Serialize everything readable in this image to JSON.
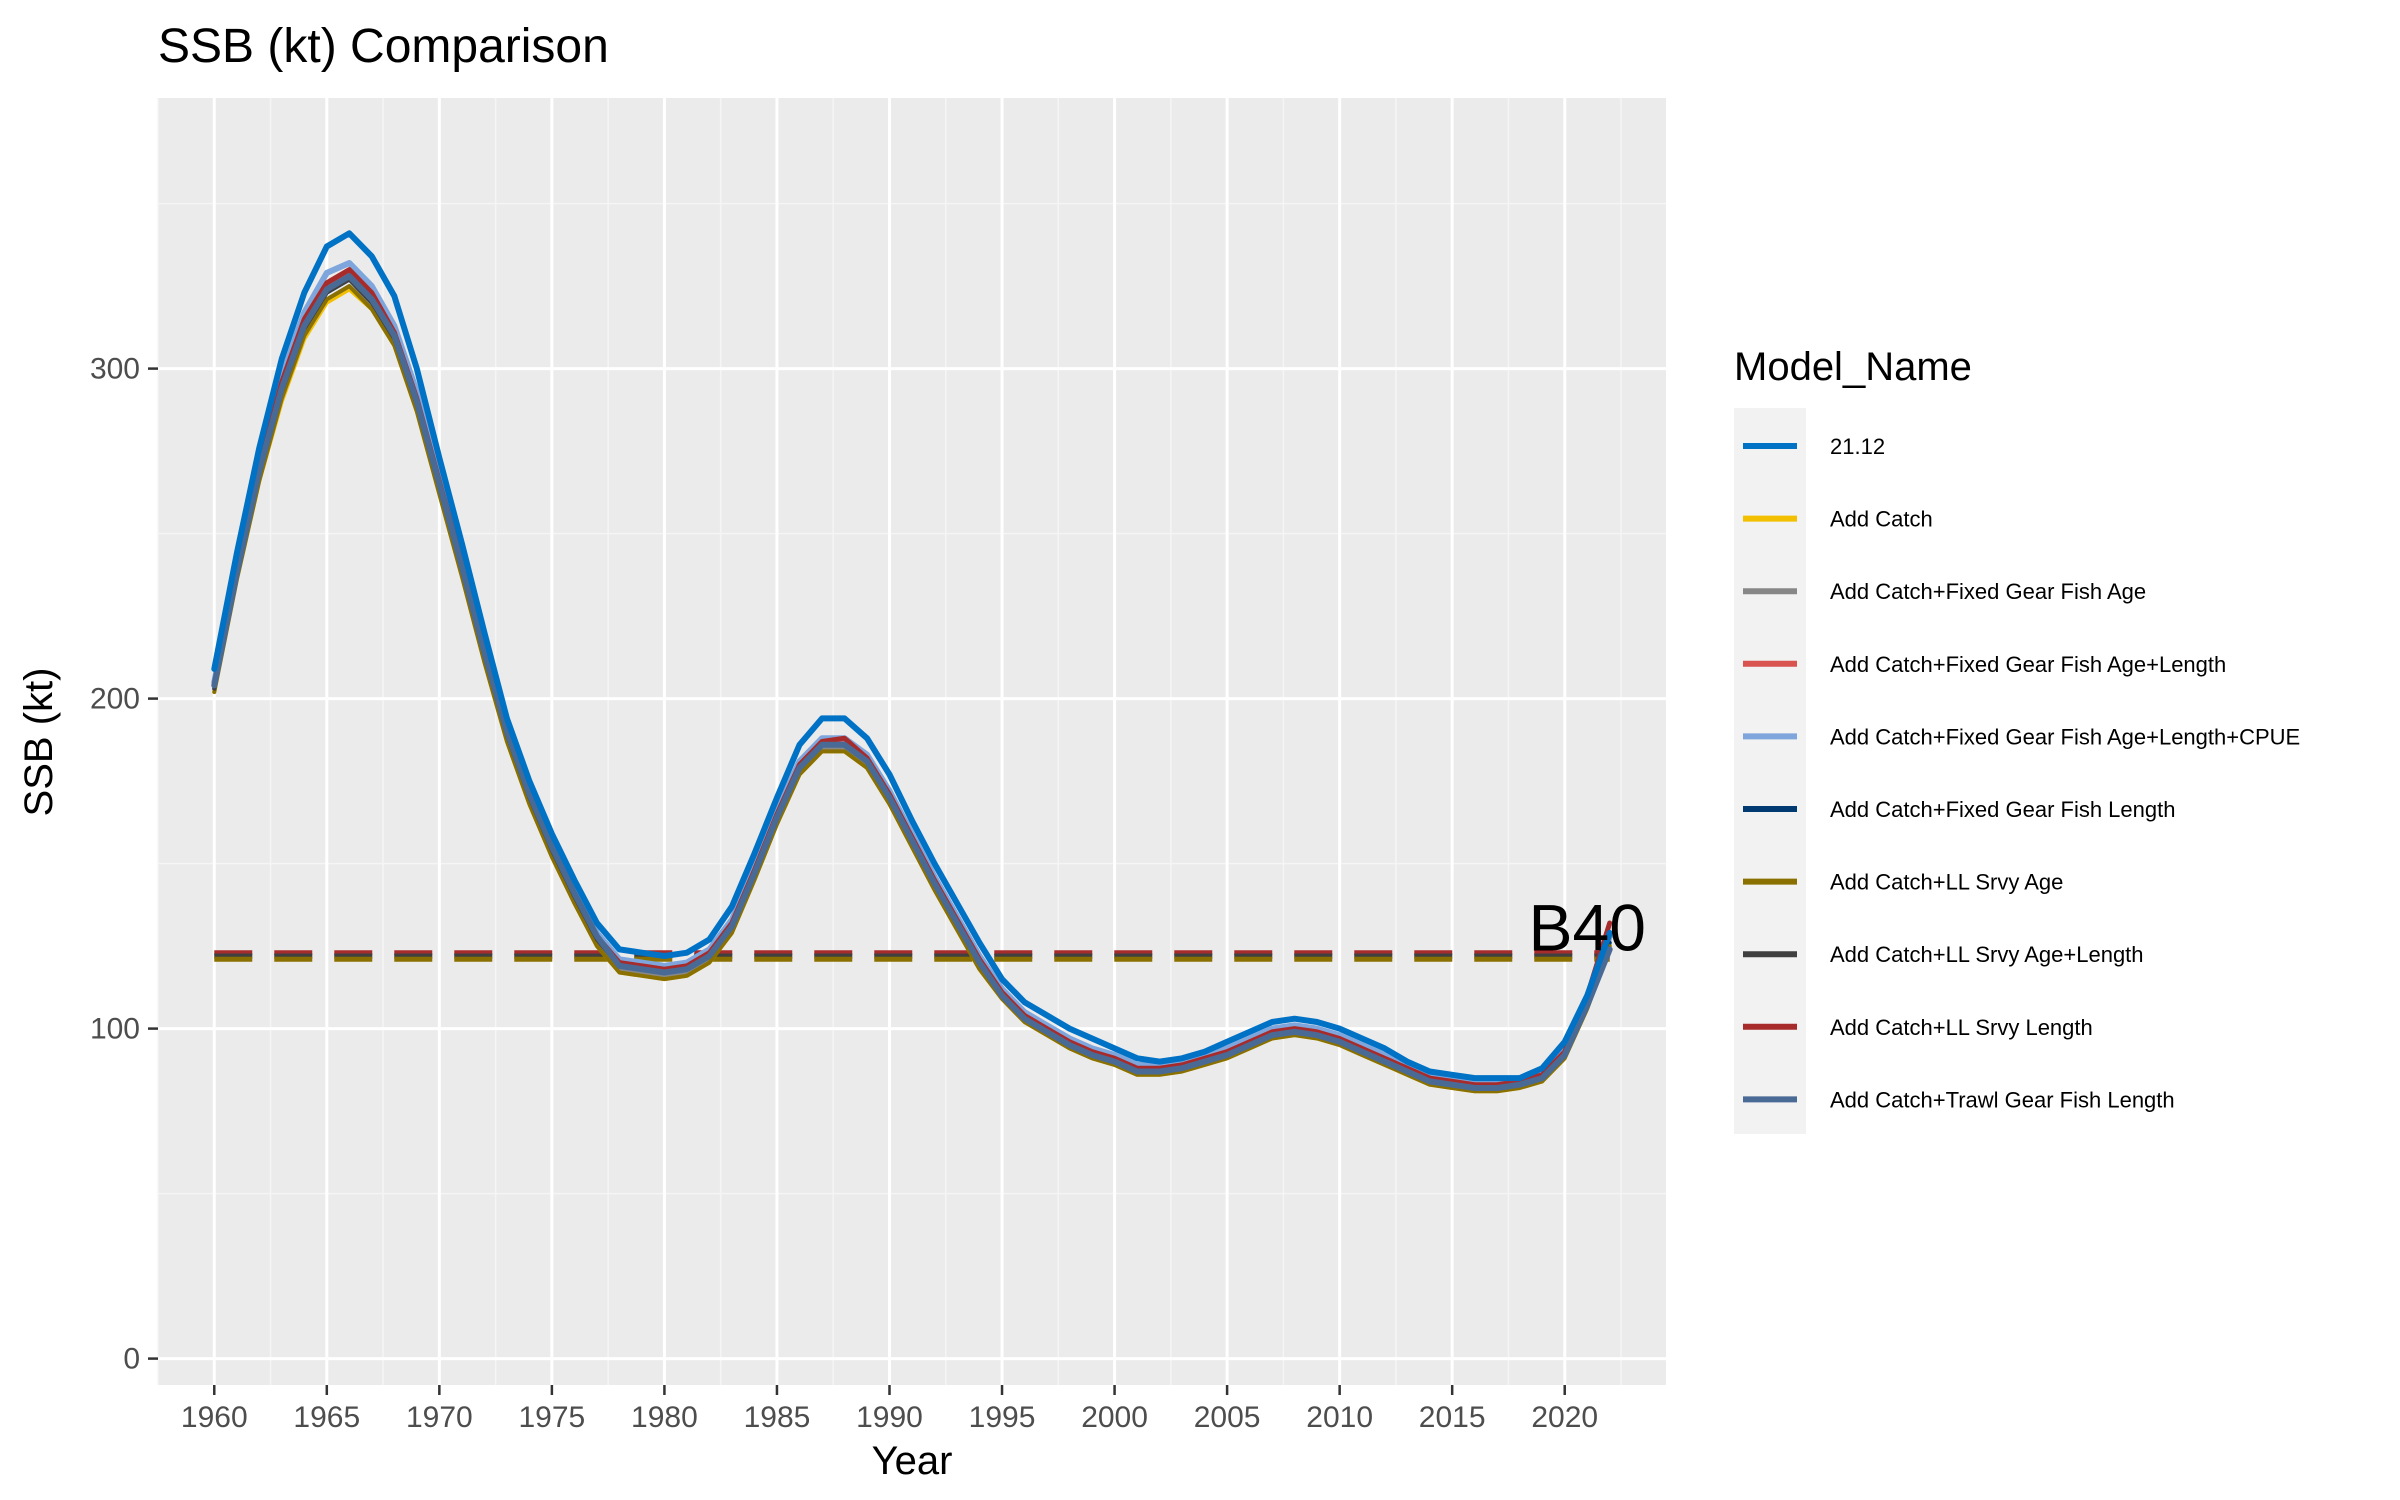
{
  "chart_data": {
    "type": "line",
    "title": "SSB (kt) Comparison",
    "xlabel": "Year",
    "ylabel": "SSB (kt)",
    "xlim": [
      1957.5,
      2024.5
    ],
    "ylim": [
      -8,
      382
    ],
    "x_ticks": [
      1960,
      1965,
      1970,
      1975,
      1980,
      1985,
      1990,
      1995,
      2000,
      2005,
      2010,
      2015,
      2020
    ],
    "y_ticks": [
      0,
      100,
      200,
      300
    ],
    "grid": true,
    "legend": {
      "title": "Model_Name",
      "position": "right"
    },
    "annotation": {
      "text": "B40",
      "x": 2021,
      "y": 131
    },
    "reference_lines": [
      {
        "series": "Add Catch+LL Srvy Length",
        "y": 123,
        "x": [
          1960,
          2022
        ],
        "style": "dashed",
        "color": "#a82b2b"
      },
      {
        "series": "Add Catch+LL Srvy Age+Length",
        "y": 122,
        "x": [
          1960,
          2022
        ],
        "style": "dashed",
        "color": "#404040"
      },
      {
        "series": "Add Catch+LL Srvy Age",
        "y": 121,
        "x": [
          1960,
          2022
        ],
        "style": "dashed",
        "color": "#8a7000"
      }
    ],
    "x": [
      1960,
      1961,
      1962,
      1963,
      1964,
      1965,
      1966,
      1967,
      1968,
      1969,
      1970,
      1971,
      1972,
      1973,
      1974,
      1975,
      1976,
      1977,
      1978,
      1979,
      1980,
      1981,
      1982,
      1983,
      1984,
      1985,
      1986,
      1987,
      1988,
      1989,
      1990,
      1991,
      1992,
      1993,
      1994,
      1995,
      1996,
      1997,
      1998,
      1999,
      2000,
      2001,
      2002,
      2003,
      2004,
      2005,
      2006,
      2007,
      2008,
      2009,
      2010,
      2011,
      2012,
      2013,
      2014,
      2015,
      2016,
      2017,
      2018,
      2019,
      2020,
      2021,
      2022
    ],
    "series": [
      {
        "name": "21.12",
        "color": "#0072c6",
        "width": 6,
        "values": [
          209,
          244,
          276,
          303,
          323,
          337,
          341,
          334,
          322,
          300,
          273,
          247,
          220,
          194,
          175,
          159,
          145,
          132,
          124,
          123,
          122,
          123,
          127,
          137,
          153,
          170,
          186,
          194,
          194,
          188,
          177,
          163,
          150,
          138,
          126,
          115,
          108,
          104,
          100,
          97,
          94,
          91,
          90,
          91,
          93,
          96,
          99,
          102,
          103,
          102,
          100,
          97,
          94,
          90,
          87,
          86,
          85,
          85,
          85,
          88,
          96,
          110,
          129
        ]
      },
      {
        "name": "Add Catch",
        "color": "#f2c000",
        "width": 4,
        "values": [
          202,
          236,
          266,
          290,
          309,
          320,
          324,
          318,
          307,
          287,
          262,
          237,
          211,
          187,
          168,
          152,
          138,
          125,
          117,
          116,
          115,
          116,
          120,
          129,
          145,
          162,
          177,
          184,
          184,
          179,
          168,
          155,
          142,
          130,
          118,
          109,
          102,
          98,
          94,
          91,
          89,
          86,
          86,
          87,
          89,
          91,
          94,
          97,
          98,
          97,
          95,
          92,
          89,
          86,
          83,
          82,
          81,
          81,
          82,
          84,
          91,
          106,
          125
        ]
      },
      {
        "name": "Add Catch+Fixed Gear Fish Age",
        "color": "#878787",
        "width": 4,
        "values": [
          203,
          237,
          267,
          291,
          310,
          321,
          325,
          319,
          308,
          288,
          263,
          238,
          212,
          188,
          169,
          153,
          139,
          126,
          118,
          117,
          116,
          117,
          121,
          130,
          146,
          163,
          178,
          185,
          185,
          180,
          169,
          156,
          143,
          131,
          119,
          110,
          103,
          99,
          95,
          92,
          90,
          87,
          87,
          88,
          90,
          92,
          95,
          98,
          99,
          98,
          96,
          93,
          90,
          87,
          84,
          83,
          82,
          82,
          83,
          85,
          92,
          107,
          126
        ]
      },
      {
        "name": "Add Catch+Fixed Gear Fish Age+Length",
        "color": "#d9534f",
        "width": 4,
        "values": [
          204,
          238,
          269,
          294,
          313,
          325,
          329,
          322,
          310,
          290,
          265,
          240,
          214,
          190,
          171,
          155,
          141,
          128,
          120,
          119,
          118,
          119,
          123,
          132,
          148,
          165,
          180,
          187,
          187,
          182,
          171,
          158,
          145,
          133,
          121,
          111,
          104,
          100,
          96,
          93,
          91,
          88,
          88,
          89,
          91,
          93,
          96,
          99,
          100,
          99,
          97,
          94,
          91,
          88,
          85,
          84,
          83,
          83,
          84,
          86,
          93,
          108,
          127
        ]
      },
      {
        "name": "Add Catch+Fixed Gear Fish Age+Length+CPUE",
        "color": "#7ea6dc",
        "width": 6,
        "values": [
          205,
          240,
          272,
          298,
          317,
          329,
          332,
          325,
          313,
          293,
          268,
          242,
          216,
          191,
          172,
          156,
          142,
          129,
          121,
          120,
          119,
          120,
          124,
          133,
          149,
          166,
          181,
          188,
          188,
          183,
          172,
          159,
          146,
          134,
          122,
          112,
          105,
          101,
          97,
          94,
          92,
          89,
          89,
          90,
          92,
          94,
          97,
          100,
          101,
          100,
          98,
          95,
          92,
          89,
          86,
          85,
          84,
          84,
          85,
          87,
          94,
          109,
          128
        ]
      },
      {
        "name": "Add Catch+Fixed Gear Fish Length",
        "color": "#003a70",
        "width": 4,
        "values": [
          203,
          237,
          268,
          293,
          312,
          323,
          327,
          320,
          309,
          289,
          264,
          239,
          213,
          189,
          170,
          154,
          140,
          127,
          119,
          118,
          117,
          118,
          122,
          131,
          147,
          164,
          179,
          186,
          186,
          181,
          170,
          157,
          144,
          132,
          120,
          110,
          103,
          99,
          95,
          92,
          90,
          87,
          87,
          88,
          90,
          92,
          95,
          98,
          99,
          98,
          96,
          93,
          90,
          87,
          84,
          83,
          82,
          82,
          83,
          85,
          92,
          107,
          126
        ]
      },
      {
        "name": "Add Catch+LL Srvy Age",
        "color": "#8a7000",
        "width": 4,
        "values": [
          202,
          236,
          266,
          291,
          310,
          321,
          325,
          318,
          307,
          287,
          262,
          237,
          211,
          187,
          168,
          152,
          138,
          125,
          117,
          116,
          115,
          116,
          120,
          129,
          145,
          162,
          177,
          184,
          184,
          179,
          168,
          155,
          142,
          130,
          118,
          109,
          102,
          98,
          94,
          91,
          89,
          86,
          86,
          87,
          89,
          91,
          94,
          97,
          98,
          97,
          95,
          92,
          89,
          86,
          83,
          82,
          81,
          81,
          82,
          84,
          91,
          106,
          125
        ]
      },
      {
        "name": "Add Catch+LL Srvy Age+Length",
        "color": "#404040",
        "width": 4,
        "values": [
          203,
          237,
          268,
          293,
          312,
          323,
          327,
          320,
          309,
          289,
          264,
          239,
          213,
          189,
          170,
          154,
          140,
          127,
          119,
          118,
          117,
          118,
          122,
          131,
          147,
          164,
          179,
          186,
          186,
          181,
          170,
          157,
          144,
          132,
          120,
          110,
          103,
          99,
          95,
          92,
          90,
          87,
          87,
          88,
          90,
          92,
          95,
          98,
          99,
          98,
          96,
          93,
          90,
          87,
          84,
          83,
          82,
          82,
          83,
          85,
          92,
          108,
          128
        ]
      },
      {
        "name": "Add Catch+LL Srvy Length",
        "color": "#a82b2b",
        "width": 5,
        "values": [
          204,
          239,
          270,
          296,
          315,
          326,
          330,
          323,
          311,
          291,
          266,
          241,
          215,
          190,
          171,
          155,
          141,
          128,
          120,
          119,
          118,
          119,
          123,
          132,
          148,
          165,
          180,
          187,
          188,
          182,
          171,
          158,
          145,
          133,
          121,
          111,
          104,
          100,
          96,
          93,
          91,
          88,
          88,
          89,
          91,
          93,
          96,
          99,
          100,
          99,
          97,
          94,
          91,
          88,
          85,
          84,
          83,
          83,
          84,
          86,
          93,
          110,
          132
        ]
      },
      {
        "name": "Add Catch+Trawl Gear Fish Length",
        "color": "#4a6a96",
        "width": 6,
        "values": [
          204,
          238,
          269,
          294,
          313,
          324,
          328,
          321,
          310,
          290,
          265,
          240,
          214,
          190,
          171,
          155,
          141,
          128,
          119,
          118,
          117,
          118,
          122,
          131,
          147,
          164,
          179,
          186,
          186,
          181,
          170,
          157,
          144,
          132,
          120,
          110,
          103,
          99,
          95,
          92,
          90,
          87,
          87,
          88,
          90,
          92,
          95,
          98,
          99,
          98,
          96,
          93,
          90,
          87,
          84,
          83,
          82,
          82,
          83,
          85,
          92,
          107,
          124
        ]
      }
    ]
  }
}
